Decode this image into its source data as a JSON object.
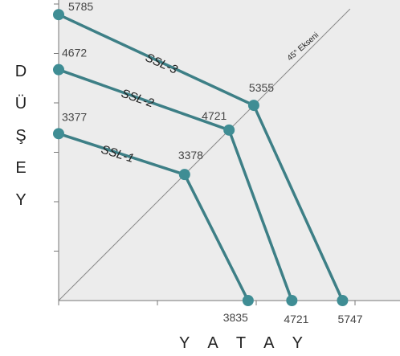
{
  "chart_data": {
    "type": "line",
    "xlabel": "Y A T A Y",
    "ylabel": "DÜŞEY",
    "diagonal_label": "45° Ekseni",
    "colors": {
      "series": "#3d7f86",
      "marker": "#3f8d94",
      "diagonal": "#8a8a8a",
      "background": "#ececec",
      "axis": "#777777"
    },
    "series": [
      {
        "name": "SSL-1",
        "points": [
          {
            "x": 0,
            "y": 3377,
            "label": "3377"
          },
          {
            "x": 2550,
            "y": 2550,
            "label": "3378"
          },
          {
            "x": 3835,
            "y": 0,
            "label": "3835"
          }
        ]
      },
      {
        "name": "SSL-2",
        "points": [
          {
            "x": 0,
            "y": 4672,
            "label": "4672"
          },
          {
            "x": 3450,
            "y": 3450,
            "label": "4721"
          },
          {
            "x": 4721,
            "y": 0,
            "label": "4721"
          }
        ]
      },
      {
        "name": "SSL-3",
        "points": [
          {
            "x": 0,
            "y": 5785,
            "label": "5785"
          },
          {
            "x": 3950,
            "y": 3950,
            "label": "5355"
          },
          {
            "x": 5747,
            "y": 0,
            "label": "5747"
          }
        ]
      }
    ],
    "xlim": [
      0,
      6000
    ],
    "ylim": [
      0,
      6000
    ]
  }
}
